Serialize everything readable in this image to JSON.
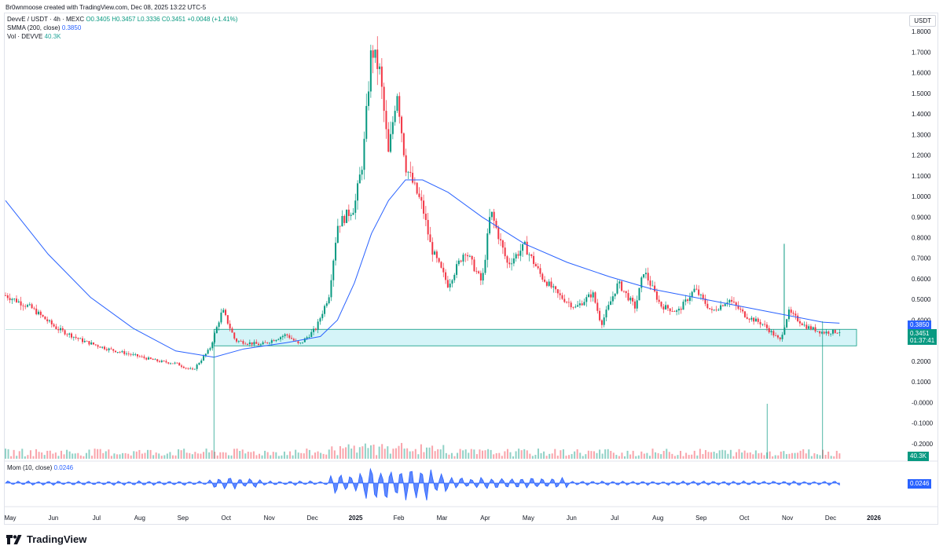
{
  "credit": "Br0wnmoose created with TradingView.com, Dec 08, 2025 13:22 UTC-5",
  "currency_label": "USDT",
  "legend": {
    "symbol": "DevvE / USDT · 4h · MEXC",
    "ohlc": "O0.3405 H0.3457 L0.3336 C0.3451 +0.0048 (+1.41%)",
    "smma_label": "SMMA (200, close)",
    "smma_value": "0.3850",
    "vol_label": "Vol · DEVVE",
    "vol_value": "40.3K",
    "mom_label": "Mom (10, close)",
    "mom_value": "0.0246"
  },
  "tags": {
    "smma": "0.3850",
    "price": "0.3451",
    "countdown": "01:37:41",
    "vol": "40.3K",
    "mom": "0.0246"
  },
  "brand": "TradingView",
  "colors": {
    "up": "#089981",
    "down": "#f23645",
    "smma": "#2962ff",
    "mom": "#2962ff",
    "zone_fill": "#b2ebf2",
    "zone_stroke": "#089981"
  },
  "chart_data": {
    "type": "candlestick",
    "y_axis": {
      "ticks": [
        "1.8000",
        "1.7000",
        "1.6000",
        "1.5000",
        "1.4000",
        "1.3000",
        "1.2000",
        "1.1000",
        "1.0000",
        "0.9000",
        "0.8000",
        "0.7000",
        "0.6000",
        "0.5000",
        "0.4000",
        "0.3000",
        "0.2000",
        "0.1000",
        "-0.0000",
        "-0.1000",
        "-0.2000"
      ],
      "min": -0.25,
      "max": 1.85
    },
    "x_axis": {
      "labels": [
        "May",
        "Jun",
        "Jul",
        "Aug",
        "Sep",
        "Oct",
        "Nov",
        "Dec",
        "2025",
        "Feb",
        "Mar",
        "Apr",
        "May",
        "Jun",
        "Jul",
        "Aug",
        "Sep",
        "Oct",
        "Nov",
        "Dec",
        "2026"
      ]
    },
    "price_series": [
      {
        "t": 0,
        "v": 0.52
      },
      {
        "t": 0.03,
        "v": 0.46
      },
      {
        "t": 0.06,
        "v": 0.36
      },
      {
        "t": 0.09,
        "v": 0.3
      },
      {
        "t": 0.12,
        "v": 0.26
      },
      {
        "t": 0.15,
        "v": 0.23
      },
      {
        "t": 0.18,
        "v": 0.2
      },
      {
        "t": 0.2,
        "v": 0.19
      },
      {
        "t": 0.22,
        "v": 0.155
      },
      {
        "t": 0.24,
        "v": 0.26
      },
      {
        "t": 0.255,
        "v": 0.45
      },
      {
        "t": 0.27,
        "v": 0.3
      },
      {
        "t": 0.3,
        "v": 0.28
      },
      {
        "t": 0.33,
        "v": 0.33
      },
      {
        "t": 0.345,
        "v": 0.28
      },
      {
        "t": 0.365,
        "v": 0.36
      },
      {
        "t": 0.38,
        "v": 0.52
      },
      {
        "t": 0.39,
        "v": 0.86
      },
      {
        "t": 0.41,
        "v": 0.95
      },
      {
        "t": 0.42,
        "v": 1.18
      },
      {
        "t": 0.43,
        "v": 1.72
      },
      {
        "t": 0.44,
        "v": 1.6
      },
      {
        "t": 0.45,
        "v": 1.2
      },
      {
        "t": 0.46,
        "v": 1.52
      },
      {
        "t": 0.47,
        "v": 1.15
      },
      {
        "t": 0.48,
        "v": 1.05
      },
      {
        "t": 0.49,
        "v": 0.95
      },
      {
        "t": 0.5,
        "v": 0.75
      },
      {
        "t": 0.52,
        "v": 0.57
      },
      {
        "t": 0.54,
        "v": 0.74
      },
      {
        "t": 0.56,
        "v": 0.58
      },
      {
        "t": 0.57,
        "v": 0.93
      },
      {
        "t": 0.59,
        "v": 0.67
      },
      {
        "t": 0.61,
        "v": 0.76
      },
      {
        "t": 0.63,
        "v": 0.61
      },
      {
        "t": 0.65,
        "v": 0.52
      },
      {
        "t": 0.67,
        "v": 0.46
      },
      {
        "t": 0.69,
        "v": 0.53
      },
      {
        "t": 0.7,
        "v": 0.38
      },
      {
        "t": 0.72,
        "v": 0.58
      },
      {
        "t": 0.74,
        "v": 0.46
      },
      {
        "t": 0.75,
        "v": 0.64
      },
      {
        "t": 0.77,
        "v": 0.47
      },
      {
        "t": 0.79,
        "v": 0.44
      },
      {
        "t": 0.81,
        "v": 0.55
      },
      {
        "t": 0.83,
        "v": 0.44
      },
      {
        "t": 0.85,
        "v": 0.5
      },
      {
        "t": 0.87,
        "v": 0.42
      },
      {
        "t": 0.89,
        "v": 0.38
      },
      {
        "t": 0.91,
        "v": 0.3
      },
      {
        "t": 0.92,
        "v": 0.44
      },
      {
        "t": 0.94,
        "v": 0.37
      },
      {
        "t": 0.96,
        "v": 0.34
      },
      {
        "t": 0.98,
        "v": 0.345
      }
    ],
    "smma_series": [
      {
        "t": 0,
        "v": 0.98
      },
      {
        "t": 0.05,
        "v": 0.72
      },
      {
        "t": 0.1,
        "v": 0.51
      },
      {
        "t": 0.15,
        "v": 0.36
      },
      {
        "t": 0.2,
        "v": 0.25
      },
      {
        "t": 0.245,
        "v": 0.22
      },
      {
        "t": 0.28,
        "v": 0.26
      },
      {
        "t": 0.33,
        "v": 0.29
      },
      {
        "t": 0.37,
        "v": 0.32
      },
      {
        "t": 0.39,
        "v": 0.4
      },
      {
        "t": 0.41,
        "v": 0.58
      },
      {
        "t": 0.43,
        "v": 0.82
      },
      {
        "t": 0.45,
        "v": 0.98
      },
      {
        "t": 0.47,
        "v": 1.08
      },
      {
        "t": 0.49,
        "v": 1.08
      },
      {
        "t": 0.52,
        "v": 1.02
      },
      {
        "t": 0.56,
        "v": 0.9
      },
      {
        "t": 0.61,
        "v": 0.77
      },
      {
        "t": 0.66,
        "v": 0.68
      },
      {
        "t": 0.71,
        "v": 0.61
      },
      {
        "t": 0.76,
        "v": 0.55
      },
      {
        "t": 0.81,
        "v": 0.51
      },
      {
        "t": 0.86,
        "v": 0.47
      },
      {
        "t": 0.91,
        "v": 0.43
      },
      {
        "t": 0.96,
        "v": 0.39
      },
      {
        "t": 0.98,
        "v": 0.385
      }
    ],
    "support_zone": {
      "low": 0.275,
      "high": 0.355,
      "start_t": 0.245,
      "end_t": 1.0
    },
    "volume_spikes": [
      {
        "t": 0.245,
        "v": 0.9
      },
      {
        "t": 0.96,
        "v": 1.0
      },
      {
        "t": 0.895,
        "v": 0.4
      }
    ],
    "price_spike": {
      "t": 0.915,
      "v": 0.77
    }
  }
}
